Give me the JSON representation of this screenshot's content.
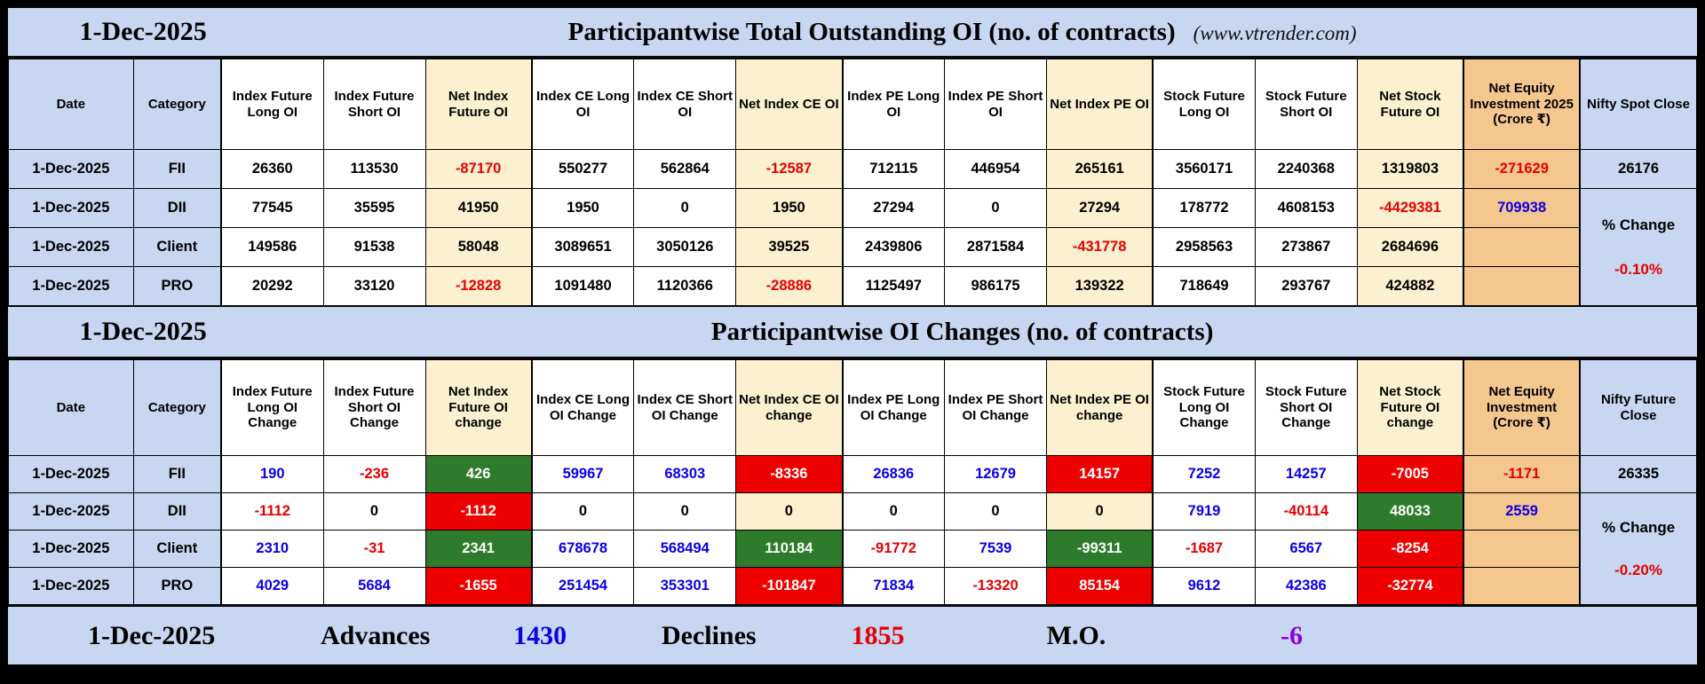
{
  "colors": {
    "panel_blue": "#c7d7f1",
    "net_tan": "#fbf0d0",
    "equity_orange": "#f4c78f",
    "positive_green_bg": "#2e7b2b",
    "negative_red_bg": "#ee0000",
    "blue_text": "#0b00e6",
    "red_text": "#e60000",
    "purple_text": "#8a00e0"
  },
  "table1": {
    "date": "1-Dec-2025",
    "title": "Participantwise Total Outstanding OI (no. of contracts)",
    "site_note": "(www.vtrender.com)",
    "headers": [
      "Date",
      "Category",
      "Index Future Long OI",
      "Index Future Short OI",
      "Net Index Future OI",
      "Index CE Long OI",
      "Index CE Short OI",
      "Net Index CE OI",
      "Index PE Long OI",
      "Index PE Short OI",
      "Net Index PE OI",
      "Stock Future Long OI",
      "Stock Future Short OI",
      "Net Stock Future OI",
      "Net Equity Investment 2025 (Crore ₹)",
      "Nifty Spot Close"
    ],
    "close_value": "26176",
    "pct_change_label": "% Change",
    "pct_change_value": "-0.10%",
    "rows": [
      {
        "date": "1-Dec-2025",
        "category": "FII",
        "cells": [
          [
            "26360",
            "k"
          ],
          [
            "113530",
            "k"
          ],
          [
            "-87170",
            "r"
          ],
          [
            "550277",
            "k"
          ],
          [
            "562864",
            "k"
          ],
          [
            "-12587",
            "r"
          ],
          [
            "712115",
            "k"
          ],
          [
            "446954",
            "k"
          ],
          [
            "265161",
            "k"
          ],
          [
            "3560171",
            "k"
          ],
          [
            "2240368",
            "k"
          ],
          [
            "1319803",
            "k"
          ],
          [
            "-271629",
            "r"
          ]
        ]
      },
      {
        "date": "1-Dec-2025",
        "category": "DII",
        "cells": [
          [
            "77545",
            "k"
          ],
          [
            "35595",
            "k"
          ],
          [
            "41950",
            "k"
          ],
          [
            "1950",
            "k"
          ],
          [
            "0",
            "k"
          ],
          [
            "1950",
            "k"
          ],
          [
            "27294",
            "k"
          ],
          [
            "0",
            "k"
          ],
          [
            "27294",
            "k"
          ],
          [
            "178772",
            "k"
          ],
          [
            "4608153",
            "k"
          ],
          [
            "-4429381",
            "r"
          ],
          [
            "709938",
            "b"
          ]
        ]
      },
      {
        "date": "1-Dec-2025",
        "category": "Client",
        "cells": [
          [
            "149586",
            "k"
          ],
          [
            "91538",
            "k"
          ],
          [
            "58048",
            "k"
          ],
          [
            "3089651",
            "k"
          ],
          [
            "3050126",
            "k"
          ],
          [
            "39525",
            "k"
          ],
          [
            "2439806",
            "k"
          ],
          [
            "2871584",
            "k"
          ],
          [
            "-431778",
            "r"
          ],
          [
            "2958563",
            "k"
          ],
          [
            "273867",
            "k"
          ],
          [
            "2684696",
            "k"
          ],
          [
            "",
            "k"
          ]
        ]
      },
      {
        "date": "1-Dec-2025",
        "category": "PRO",
        "cells": [
          [
            "20292",
            "k"
          ],
          [
            "33120",
            "k"
          ],
          [
            "-12828",
            "r"
          ],
          [
            "1091480",
            "k"
          ],
          [
            "1120366",
            "k"
          ],
          [
            "-28886",
            "r"
          ],
          [
            "1125497",
            "k"
          ],
          [
            "986175",
            "k"
          ],
          [
            "139322",
            "k"
          ],
          [
            "718649",
            "k"
          ],
          [
            "293767",
            "k"
          ],
          [
            "424882",
            "k"
          ],
          [
            "",
            "k"
          ]
        ]
      }
    ]
  },
  "table2": {
    "date": "1-Dec-2025",
    "title": "Participantwise OI Changes (no. of contracts)",
    "headers": [
      "Date",
      "Category",
      "Index Future Long OI Change",
      "Index Future Short OI Change",
      "Net Index Future OI change",
      "Index CE Long OI Change",
      "Index CE Short OI Change",
      "Net Index CE OI change",
      "Index PE Long OI Change",
      "Index PE Short OI Change",
      "Net Index PE OI change",
      "Stock Future Long OI Change",
      "Stock Future Short OI Change",
      "Net Stock Future OI change",
      "Net Equity Investment (Crore ₹)",
      "Nifty Future Close"
    ],
    "close_value": "26335",
    "pct_change_label": "% Change",
    "pct_change_value": "-0.20%",
    "rows": [
      {
        "date": "1-Dec-2025",
        "category": "FII",
        "cells": [
          [
            "190",
            "b"
          ],
          [
            "-236",
            "r"
          ],
          [
            "426",
            "G"
          ],
          [
            "59967",
            "b"
          ],
          [
            "68303",
            "b"
          ],
          [
            "-8336",
            "R"
          ],
          [
            "26836",
            "b"
          ],
          [
            "12679",
            "b"
          ],
          [
            "14157",
            "R"
          ],
          [
            "7252",
            "b"
          ],
          [
            "14257",
            "b"
          ],
          [
            "-7005",
            "R"
          ],
          [
            "-1171",
            "r"
          ]
        ]
      },
      {
        "date": "1-Dec-2025",
        "category": "DII",
        "cells": [
          [
            "-1112",
            "r"
          ],
          [
            "0",
            "k"
          ],
          [
            "-1112",
            "R"
          ],
          [
            "0",
            "k"
          ],
          [
            "0",
            "k"
          ],
          [
            "0",
            "k"
          ],
          [
            "0",
            "k"
          ],
          [
            "0",
            "k"
          ],
          [
            "0",
            "k"
          ],
          [
            "7919",
            "b"
          ],
          [
            "-40114",
            "r"
          ],
          [
            "48033",
            "G"
          ],
          [
            "2559",
            "b"
          ]
        ]
      },
      {
        "date": "1-Dec-2025",
        "category": "Client",
        "cells": [
          [
            "2310",
            "b"
          ],
          [
            "-31",
            "r"
          ],
          [
            "2341",
            "G"
          ],
          [
            "678678",
            "b"
          ],
          [
            "568494",
            "b"
          ],
          [
            "110184",
            "G"
          ],
          [
            "-91772",
            "r"
          ],
          [
            "7539",
            "b"
          ],
          [
            "-99311",
            "G"
          ],
          [
            "-1687",
            "r"
          ],
          [
            "6567",
            "b"
          ],
          [
            "-8254",
            "R"
          ],
          [
            "",
            "k"
          ]
        ]
      },
      {
        "date": "1-Dec-2025",
        "category": "PRO",
        "cells": [
          [
            "4029",
            "b"
          ],
          [
            "5684",
            "b"
          ],
          [
            "-1655",
            "R"
          ],
          [
            "251454",
            "b"
          ],
          [
            "353301",
            "b"
          ],
          [
            "-101847",
            "R"
          ],
          [
            "71834",
            "b"
          ],
          [
            "-13320",
            "r"
          ],
          [
            "85154",
            "R"
          ],
          [
            "9612",
            "b"
          ],
          [
            "42386",
            "b"
          ],
          [
            "-32774",
            "R"
          ],
          [
            "",
            "k"
          ]
        ]
      }
    ]
  },
  "footer": {
    "date": "1-Dec-2025",
    "advances_label": "Advances",
    "advances_value": "1430",
    "declines_label": "Declines",
    "declines_value": "1855",
    "mo_label": "M.O.",
    "mo_value": "-6"
  }
}
